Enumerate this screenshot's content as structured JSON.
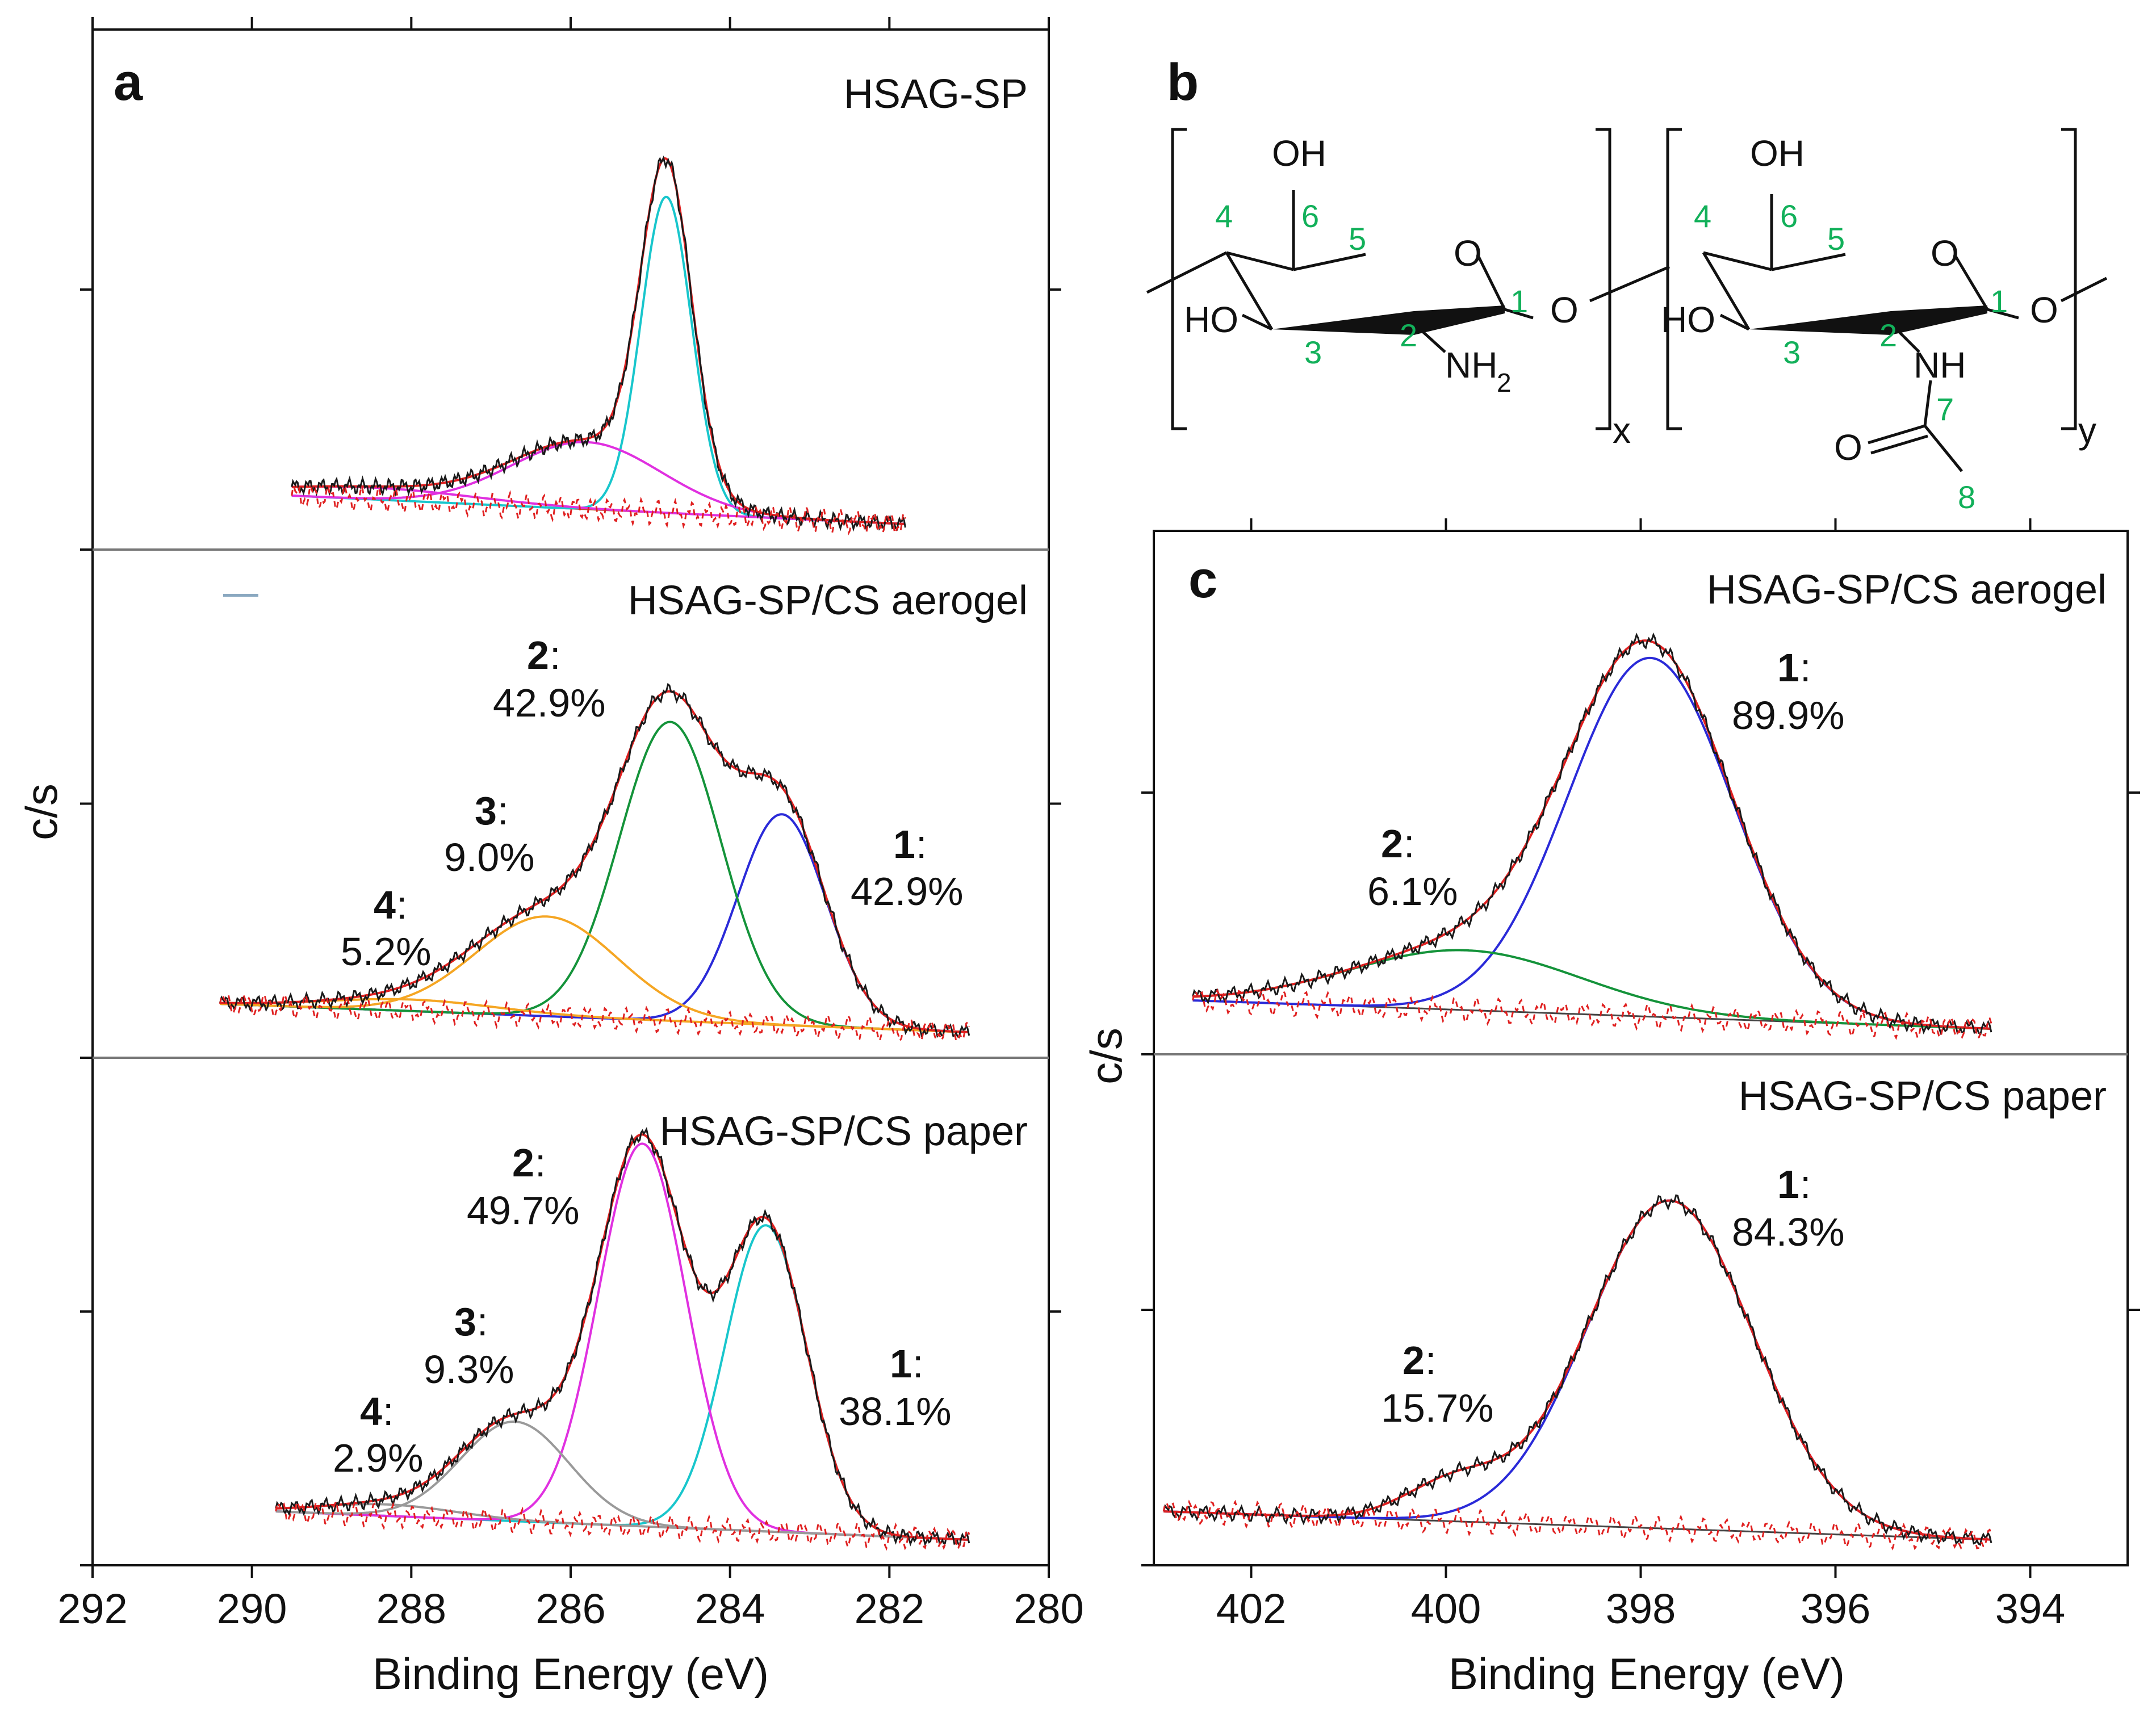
{
  "colors": {
    "envelope": "#e02020",
    "raw": "#1a1a1a",
    "residual": "#e02020",
    "baseline": "#c0502a",
    "cyan": "#18c6cc",
    "magenta": "#e030e0",
    "green": "#14933a",
    "blue": "#2a2ad8",
    "orange": "#f5a623",
    "gray": "#9a9a9a",
    "chem_numbers": "#12b05a"
  },
  "chart_data": [
    {
      "id": "a",
      "type": "line",
      "panel_label": "a",
      "xlabel": "Binding Energy (eV)",
      "ylabel": "c/s",
      "xlim": [
        292,
        280
      ],
      "xticks": [
        "292",
        "290",
        "288",
        "286",
        "284",
        "282",
        "280"
      ],
      "subplots": [
        {
          "title": "HSAG-SP",
          "peaks": [
            {
              "center": 284.8,
              "fwhm": 0.75,
              "height": 0.8,
              "color": "cyan"
            },
            {
              "center": 285.8,
              "fwhm": 2.2,
              "height": 0.17,
              "color": "magenta"
            },
            {
              "center": 288.5,
              "fwhm": 3.0,
              "height": 0.03,
              "color": "magenta"
            }
          ],
          "annotations": []
        },
        {
          "title": "HSAG-SP/CS aerogel",
          "peaks": [
            {
              "label": "1",
              "percent": "42.9%",
              "center": 283.35,
              "fwhm": 1.3,
              "height": 0.55,
              "color": "blue"
            },
            {
              "label": "2",
              "percent": "42.9%",
              "center": 284.75,
              "fwhm": 1.5,
              "height": 0.78,
              "color": "green"
            },
            {
              "label": "3",
              "percent": "9.0%",
              "center": 286.3,
              "fwhm": 2.1,
              "height": 0.26,
              "color": "orange"
            },
            {
              "label": "4",
              "percent": "5.2%",
              "center": 288.0,
              "fwhm": 2.5,
              "height": 0.03,
              "color": "orange"
            }
          ],
          "annotations": [
            {
              "num": "2",
              "pct": "42.9%"
            },
            {
              "num": "3",
              "pct": "9.0%"
            },
            {
              "num": "1",
              "pct": "42.9%"
            },
            {
              "num": "4",
              "pct": "5.2%"
            }
          ]
        },
        {
          "title": "HSAG-SP/CS paper",
          "peaks": [
            {
              "label": "1",
              "percent": "38.1%",
              "center": 283.55,
              "fwhm": 1.2,
              "height": 0.8,
              "color": "cyan"
            },
            {
              "label": "2",
              "percent": "49.7%",
              "center": 285.1,
              "fwhm": 1.3,
              "height": 1.0,
              "color": "magenta"
            },
            {
              "label": "3",
              "percent": "9.3%",
              "center": 286.7,
              "fwhm": 1.6,
              "height": 0.26,
              "color": "gray"
            },
            {
              "label": "4",
              "percent": "2.9%",
              "center": 288.3,
              "fwhm": 2.0,
              "height": 0.03,
              "color": "gray"
            }
          ],
          "annotations": [
            {
              "num": "2",
              "pct": "49.7%"
            },
            {
              "num": "3",
              "pct": "9.3%"
            },
            {
              "num": "1",
              "pct": "38.1%"
            },
            {
              "num": "4",
              "pct": "2.9%"
            }
          ]
        }
      ]
    },
    {
      "id": "c",
      "type": "line",
      "panel_label": "c",
      "xlabel": "Binding Energy (eV)",
      "ylabel": "c/s",
      "xlim": [
        403,
        393
      ],
      "xticks": [
        "402",
        "400",
        "398",
        "396",
        "394"
      ],
      "subplots": [
        {
          "title": "HSAG-SP/CS aerogel",
          "peaks": [
            {
              "label": "1",
              "percent": "89.9%",
              "center": 397.9,
              "fwhm": 2.0,
              "height": 0.9,
              "color": "blue"
            },
            {
              "label": "2",
              "percent": "6.1%",
              "center": 399.8,
              "fwhm": 2.8,
              "height": 0.15,
              "color": "green"
            }
          ],
          "annotations": [
            {
              "num": "1",
              "pct": "89.9%"
            },
            {
              "num": "2",
              "pct": "6.1%"
            }
          ]
        },
        {
          "title": "HSAG-SP/CS paper",
          "peaks": [
            {
              "label": "1",
              "percent": "84.3%",
              "center": 397.7,
              "fwhm": 2.0,
              "height": 0.85,
              "color": "blue"
            },
            {
              "label": "2",
              "percent": "15.7%",
              "center": 399.9,
              "fwhm": 1.2,
              "height": 0.1,
              "color": "none"
            }
          ],
          "annotations": [
            {
              "num": "1",
              "pct": "84.3%"
            },
            {
              "num": "2",
              "pct": "15.7%"
            }
          ]
        }
      ]
    }
  ],
  "panel_b": {
    "label": "b",
    "unit1": {
      "oh": "OH",
      "ho": "HO",
      "ring_o": "O",
      "link_o": "O",
      "nh2_main": "NH",
      "nh2_sub": "2",
      "subscript": "x",
      "numbers": [
        "1",
        "2",
        "3",
        "4",
        "5",
        "6"
      ]
    },
    "unit2": {
      "oh": "OH",
      "ho": "HO",
      "ring_o": "O",
      "link_o": "O",
      "nh": "NH",
      "carbonyl_o": "O",
      "subscript": "y",
      "numbers": [
        "1",
        "2",
        "3",
        "4",
        "5",
        "6",
        "7",
        "8"
      ]
    }
  }
}
